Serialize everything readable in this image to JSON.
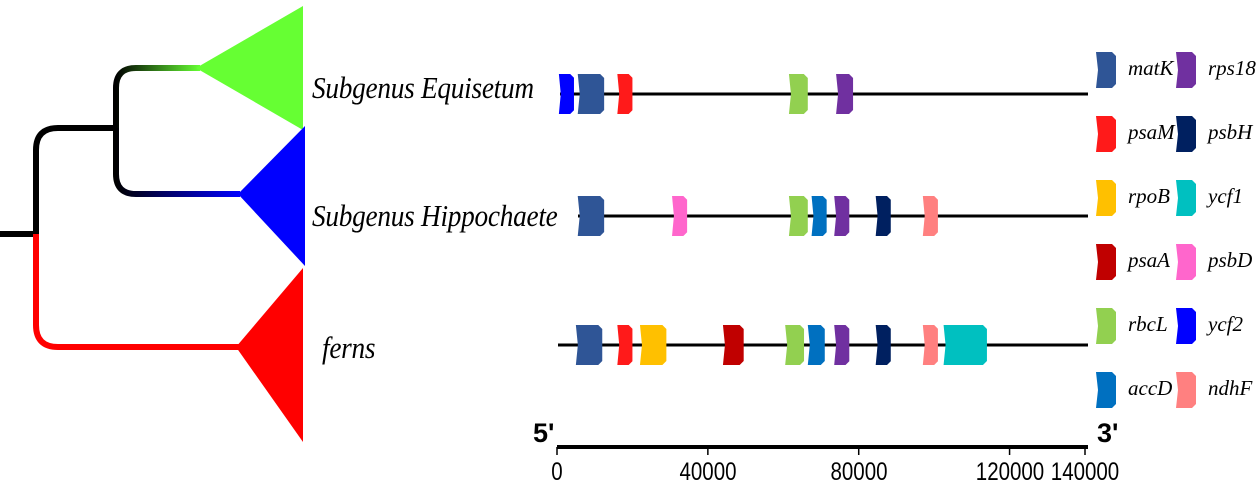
{
  "colors": {
    "matK": "#2f5596",
    "psaM": "#ff1a1a",
    "rpoB": "#ffc000",
    "psaA": "#c00000",
    "rbcL": "#92d050",
    "accD": "#0070c0",
    "rps18": "#7030a0",
    "psbH": "#002060",
    "ycf1": "#00c0c0",
    "psbD": "#ff66cc",
    "ycf2": "#0000ff",
    "ndhF": "#ff8080",
    "clade_equisetum": "#66ff33",
    "clade_hippochaete": "#0000ff",
    "clade_ferns": "#ff0000",
    "root": "#000000"
  },
  "tree": {
    "clades": [
      {
        "id": "equisetum",
        "label": "Subgenus Equisetum",
        "color_key": "clade_equisetum"
      },
      {
        "id": "hippochaete",
        "label": "Subgenus Hippochaete",
        "color_key": "clade_hippochaete"
      },
      {
        "id": "ferns",
        "label": "ferns",
        "color_key": "clade_ferns"
      }
    ]
  },
  "chart_data": {
    "type": "gene_map",
    "axis": {
      "min": 0,
      "max": 140000,
      "ticks": [
        0,
        40000,
        80000,
        120000,
        140000
      ],
      "start_label": "5'",
      "end_label": "3'"
    },
    "tracks": [
      {
        "clade": "Subgenus Equisetum",
        "genes": [
          {
            "gene": "ycf2",
            "start": 500,
            "end": 4500
          },
          {
            "gene": "matK",
            "start": 5500,
            "end": 12500
          },
          {
            "gene": "psaM",
            "start": 16000,
            "end": 20000
          },
          {
            "gene": "rbcL",
            "start": 61500,
            "end": 66500
          },
          {
            "gene": "rps18",
            "start": 74000,
            "end": 78500
          }
        ]
      },
      {
        "clade": "Subgenus Hippochaete",
        "genes": [
          {
            "gene": "matK",
            "start": 5500,
            "end": 12500
          },
          {
            "gene": "psbD",
            "start": 30500,
            "end": 34500
          },
          {
            "gene": "rbcL",
            "start": 61500,
            "end": 66500
          },
          {
            "gene": "accD",
            "start": 67500,
            "end": 71500
          },
          {
            "gene": "rps18",
            "start": 73500,
            "end": 77500
          },
          {
            "gene": "psbH",
            "start": 84500,
            "end": 88500
          },
          {
            "gene": "ndhF",
            "start": 97000,
            "end": 101000
          }
        ]
      },
      {
        "clade": "ferns",
        "genes": [
          {
            "gene": "matK",
            "start": 5000,
            "end": 12000
          },
          {
            "gene": "psaM",
            "start": 16000,
            "end": 20000
          },
          {
            "gene": "rpoB",
            "start": 22000,
            "end": 29000
          },
          {
            "gene": "psaA",
            "start": 44000,
            "end": 49500
          },
          {
            "gene": "rbcL",
            "start": 60500,
            "end": 65500
          },
          {
            "gene": "accD",
            "start": 66500,
            "end": 71000
          },
          {
            "gene": "rps18",
            "start": 73500,
            "end": 77500
          },
          {
            "gene": "psbH",
            "start": 84500,
            "end": 88500
          },
          {
            "gene": "ndhF",
            "start": 97000,
            "end": 101000
          },
          {
            "gene": "ycf1",
            "start": 102500,
            "end": 114000
          }
        ]
      }
    ],
    "legend": [
      {
        "gene": "matK"
      },
      {
        "gene": "rps18"
      },
      {
        "gene": "psaM"
      },
      {
        "gene": "psbH"
      },
      {
        "gene": "rpoB"
      },
      {
        "gene": "ycf1"
      },
      {
        "gene": "psaA"
      },
      {
        "gene": "psbD"
      },
      {
        "gene": "rbcL"
      },
      {
        "gene": "ycf2"
      },
      {
        "gene": "accD"
      },
      {
        "gene": "ndhF"
      }
    ]
  }
}
